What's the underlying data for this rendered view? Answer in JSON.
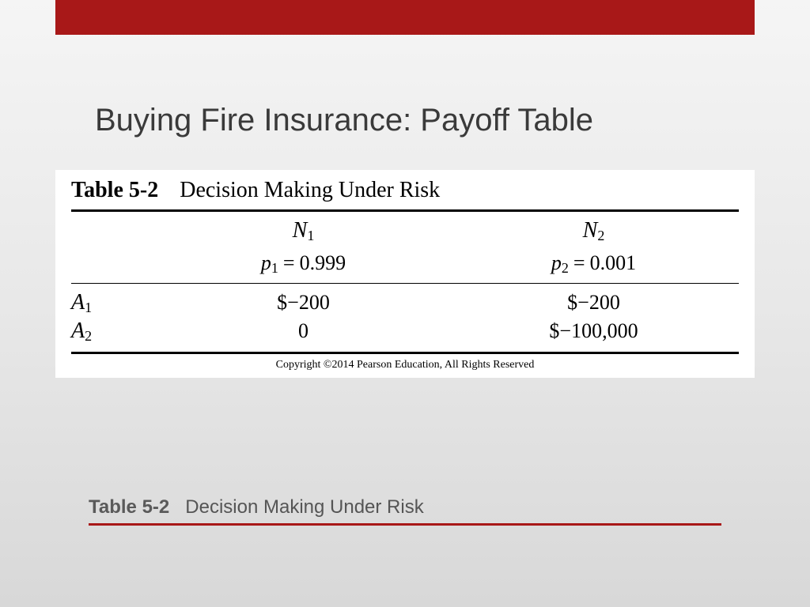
{
  "theme": {
    "accent_color": "#a81818",
    "background_gradient_top": "#f5f5f5",
    "background_gradient_bottom": "#d8d8d8",
    "card_background": "#ffffff",
    "rule_color": "#000000",
    "text_color": "#3a3a3a"
  },
  "slide": {
    "title": "Buying Fire Insurance:  Payoff Table"
  },
  "table": {
    "label": "Table 5-2",
    "title": "Decision Making Under Risk",
    "copyright": "Copyright ©2014 Pearson Education, All Rights Reserved",
    "states": [
      {
        "name": "N",
        "index": "1",
        "prob_var": "p",
        "prob_index": "1",
        "prob_value": "0.999"
      },
      {
        "name": "N",
        "index": "2",
        "prob_var": "p",
        "prob_index": "2",
        "prob_value": "0.001"
      }
    ],
    "actions": [
      {
        "name": "A",
        "index": "1",
        "payoffs": [
          "$−200",
          "$−200"
        ]
      },
      {
        "name": "A",
        "index": "2",
        "payoffs": [
          "0",
          "$−100,000"
        ]
      }
    ]
  },
  "caption": {
    "label": "Table 5-2",
    "text": "Decision Making Under Risk"
  }
}
